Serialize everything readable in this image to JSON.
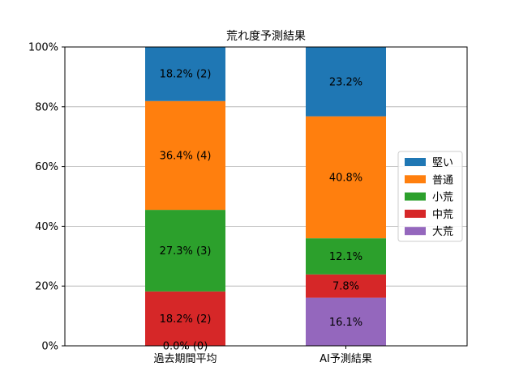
{
  "chart_data": {
    "type": "bar",
    "stacked": true,
    "title": "荒れ度予測結果",
    "xlabel": "",
    "ylabel": "",
    "categories": [
      "過去期間平均",
      "AI予測結果"
    ],
    "ylim": [
      0,
      100
    ],
    "yticks": [
      0,
      20,
      40,
      60,
      80,
      100
    ],
    "ytick_labels": [
      "0%",
      "20%",
      "40%",
      "60%",
      "80%",
      "100%"
    ],
    "grid": "y",
    "legend_position": "right",
    "series": [
      {
        "name": "大荒",
        "color": "#9467bd",
        "values": [
          0.0,
          16.1
        ],
        "labels": [
          "0.0% (0)",
          "16.1%"
        ]
      },
      {
        "name": "中荒",
        "color": "#d62728",
        "values": [
          18.2,
          7.8
        ],
        "labels": [
          "18.2% (2)",
          "7.8%"
        ]
      },
      {
        "name": "小荒",
        "color": "#2ca02c",
        "values": [
          27.3,
          12.1
        ],
        "labels": [
          "27.3% (3)",
          "12.1%"
        ]
      },
      {
        "name": "普通",
        "color": "#ff7f0e",
        "values": [
          36.4,
          40.8
        ],
        "labels": [
          "36.4% (4)",
          "40.8%"
        ]
      },
      {
        "name": "堅い",
        "color": "#1f77b4",
        "values": [
          18.2,
          23.2
        ],
        "labels": [
          "18.2% (2)",
          "23.2%"
        ]
      }
    ],
    "legend_order": [
      "堅い",
      "普通",
      "小荒",
      "中荒",
      "大荒"
    ]
  }
}
